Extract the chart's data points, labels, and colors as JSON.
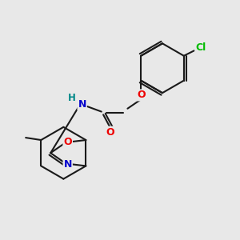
{
  "background_color": "#e8e8e8",
  "bond_color": "#1a1a1a",
  "atom_colors": {
    "N": "#0000cc",
    "O": "#ee0000",
    "Cl": "#00bb00",
    "H": "#008888",
    "C": "#1a1a1a"
  },
  "figsize": [
    3.0,
    3.0
  ],
  "dpi": 100
}
